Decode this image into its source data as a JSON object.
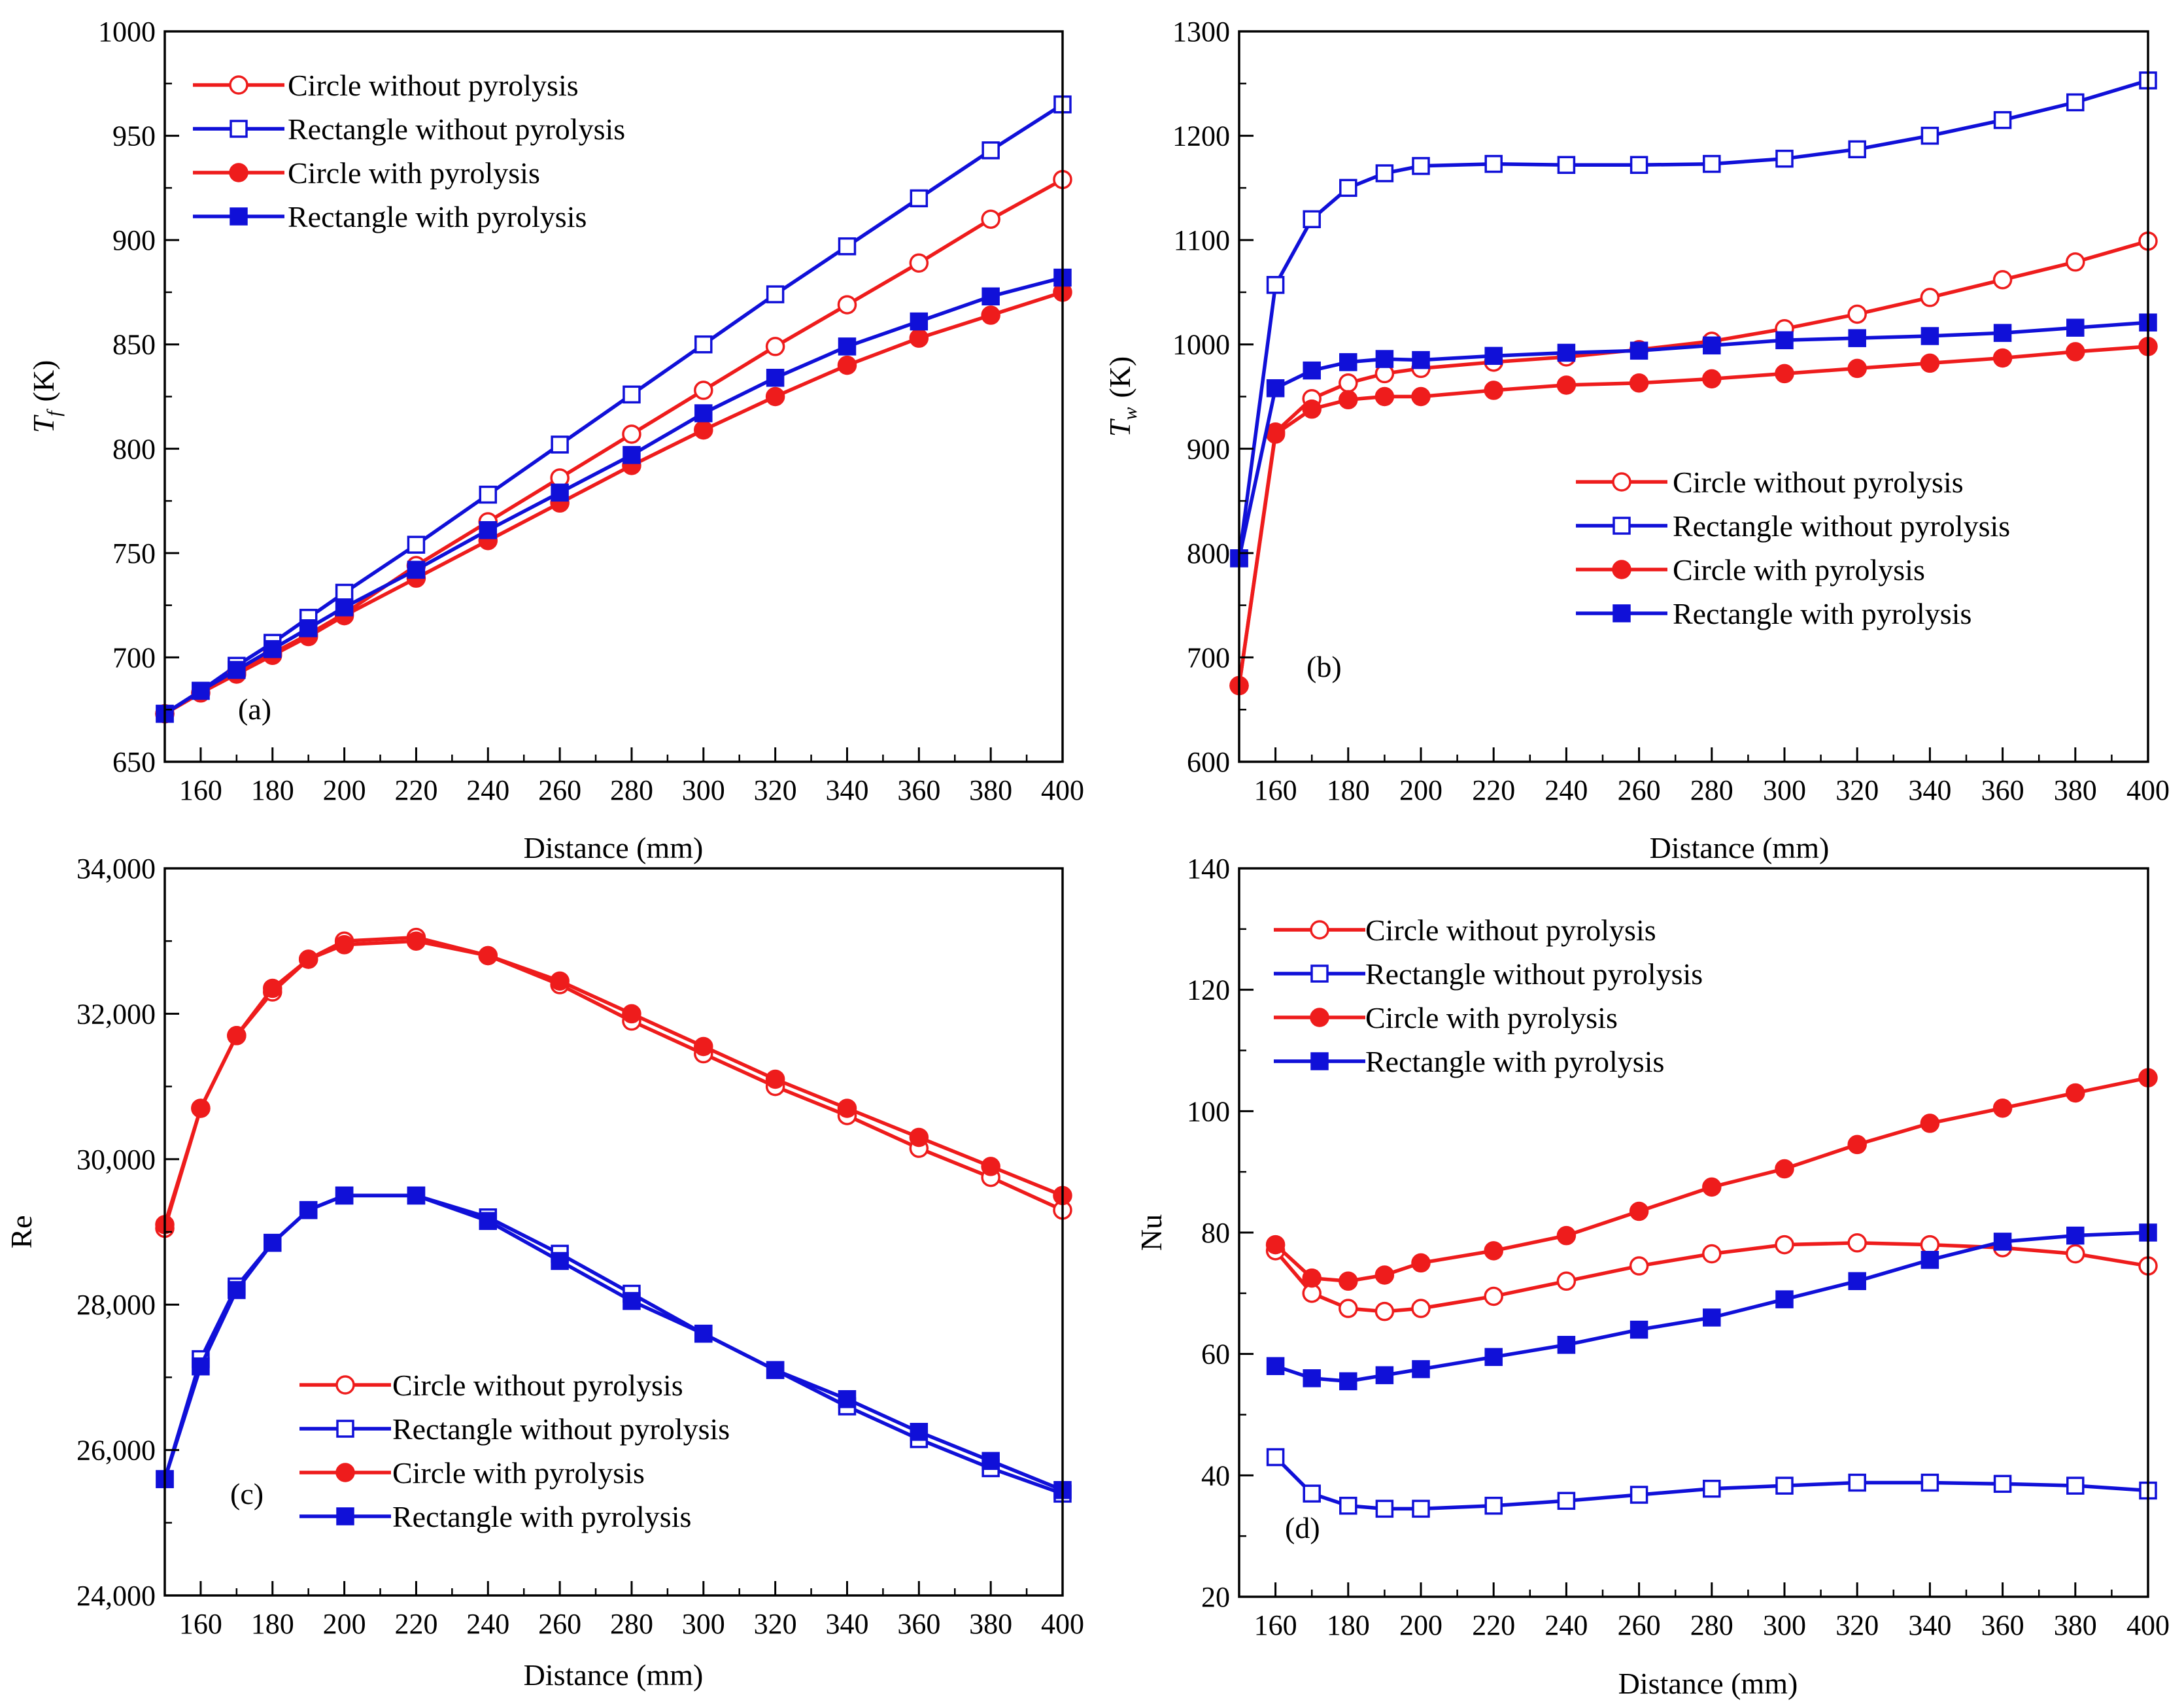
{
  "colors": {
    "red": "#ee1c1c",
    "blue": "#1010d8",
    "axis": "#000000"
  },
  "legend": [
    {
      "label": "Circle without pyrolysis",
      "color": "#ee1c1c",
      "marker": "circle-open"
    },
    {
      "label": "Rectangle without pyrolysis",
      "color": "#1010d8",
      "marker": "square-open"
    },
    {
      "label": "Circle with pyrolysis",
      "color": "#ee1c1c",
      "marker": "circle-filled"
    },
    {
      "label": "Rectangle with pyrolysis",
      "color": "#1010d8",
      "marker": "square-filled"
    }
  ],
  "chart_data": [
    {
      "type": "line",
      "panel": "(a)",
      "xlabel": "Distance (mm)",
      "ylabel": "T_f (K)",
      "ylabel_main": "T",
      "ylabel_sub": "f",
      "ylabel_unit": "(K)",
      "xlim": [
        150,
        400
      ],
      "ylim": [
        650,
        1000
      ],
      "xticks": [
        160,
        180,
        200,
        220,
        240,
        260,
        280,
        300,
        320,
        340,
        360,
        380,
        400
      ],
      "yticks": [
        650,
        700,
        750,
        800,
        850,
        900,
        950,
        1000
      ],
      "ytick_labels": [
        "650",
        "700",
        "750",
        "800",
        "850",
        "900",
        "950",
        "1000"
      ],
      "legend_position": "top-left",
      "series": [
        {
          "name": "Circle without pyrolysis",
          "x": [
            150,
            160,
            170,
            180,
            190,
            200,
            220,
            240,
            260,
            280,
            300,
            320,
            340,
            360,
            380,
            400
          ],
          "y": [
            673,
            683,
            693,
            702,
            711,
            721,
            744,
            765,
            786,
            807,
            828,
            849,
            869,
            889,
            910,
            929
          ]
        },
        {
          "name": "Rectangle without pyrolysis",
          "x": [
            150,
            160,
            170,
            180,
            190,
            200,
            220,
            240,
            260,
            280,
            300,
            320,
            340,
            360,
            380,
            400
          ],
          "y": [
            673,
            684,
            696,
            707,
            719,
            731,
            754,
            778,
            802,
            826,
            850,
            874,
            897,
            920,
            943,
            965
          ]
        },
        {
          "name": "Circle with pyrolysis",
          "x": [
            150,
            160,
            170,
            180,
            190,
            200,
            220,
            240,
            260,
            280,
            300,
            320,
            340,
            360,
            380,
            400
          ],
          "y": [
            673,
            683,
            692,
            701,
            710,
            720,
            738,
            756,
            774,
            792,
            809,
            825,
            840,
            853,
            864,
            875
          ]
        },
        {
          "name": "Rectangle with pyrolysis",
          "x": [
            150,
            160,
            170,
            180,
            190,
            200,
            220,
            240,
            260,
            280,
            300,
            320,
            340,
            360,
            380,
            400
          ],
          "y": [
            673,
            684,
            694,
            704,
            714,
            724,
            742,
            761,
            779,
            797,
            817,
            834,
            849,
            861,
            873,
            882
          ]
        }
      ]
    },
    {
      "type": "line",
      "panel": "(b)",
      "xlabel": "Distance (mm)",
      "ylabel": "T_w (K)",
      "ylabel_main": "T",
      "ylabel_sub": "w",
      "ylabel_unit": "(K)",
      "xlim": [
        150,
        400
      ],
      "ylim": [
        600,
        1300
      ],
      "xticks": [
        160,
        180,
        200,
        220,
        240,
        260,
        280,
        300,
        320,
        340,
        360,
        380,
        400
      ],
      "yticks": [
        600,
        700,
        800,
        900,
        1000,
        1100,
        1200,
        1300
      ],
      "ytick_labels": [
        "600",
        "700",
        "800",
        "900",
        "1000",
        "1100",
        "1200",
        "1300"
      ],
      "legend_position": "center-right",
      "series": [
        {
          "name": "Circle without pyrolysis",
          "x": [
            150,
            160,
            170,
            180,
            190,
            200,
            220,
            240,
            260,
            280,
            300,
            320,
            340,
            360,
            380,
            400
          ],
          "y": [
            673,
            916,
            948,
            963,
            972,
            977,
            983,
            988,
            995,
            1003,
            1015,
            1029,
            1045,
            1062,
            1079,
            1099
          ]
        },
        {
          "name": "Rectangle without pyrolysis",
          "x": [
            150,
            160,
            170,
            180,
            190,
            200,
            220,
            240,
            260,
            280,
            300,
            320,
            340,
            360,
            380,
            400
          ],
          "y": [
            795,
            1057,
            1120,
            1150,
            1164,
            1171,
            1173,
            1172,
            1172,
            1173,
            1178,
            1187,
            1200,
            1215,
            1232,
            1253
          ]
        },
        {
          "name": "Circle with pyrolysis",
          "x": [
            150,
            160,
            170,
            180,
            190,
            200,
            220,
            240,
            260,
            280,
            300,
            320,
            340,
            360,
            380,
            400
          ],
          "y": [
            673,
            914,
            938,
            947,
            950,
            950,
            956,
            961,
            963,
            967,
            972,
            977,
            982,
            987,
            993,
            998
          ]
        },
        {
          "name": "Rectangle with pyrolysis",
          "x": [
            150,
            160,
            170,
            180,
            190,
            200,
            220,
            240,
            260,
            280,
            300,
            320,
            340,
            360,
            380,
            400
          ],
          "y": [
            795,
            958,
            975,
            983,
            986,
            985,
            989,
            992,
            994,
            999,
            1004,
            1006,
            1008,
            1011,
            1016,
            1021
          ]
        }
      ]
    },
    {
      "type": "line",
      "panel": "(c)",
      "xlabel": "Distance (mm)",
      "ylabel": "Re",
      "xlim": [
        150,
        400
      ],
      "ylim": [
        24000,
        34000
      ],
      "xticks": [
        160,
        180,
        200,
        220,
        240,
        260,
        280,
        300,
        320,
        340,
        360,
        380,
        400
      ],
      "yticks": [
        24000,
        26000,
        28000,
        30000,
        32000,
        34000
      ],
      "ytick_labels": [
        "24,000",
        "26,000",
        "28,000",
        "30,000",
        "32,000",
        "34,000"
      ],
      "legend_position": "bottom-center",
      "series": [
        {
          "name": "Circle without pyrolysis",
          "x": [
            150,
            160,
            170,
            180,
            190,
            200,
            220,
            240,
            260,
            280,
            300,
            320,
            340,
            360,
            380,
            400
          ],
          "y": [
            29050,
            30700,
            31700,
            32300,
            32750,
            33000,
            33050,
            32800,
            32400,
            31900,
            31450,
            31000,
            30600,
            30150,
            29750,
            29300
          ]
        },
        {
          "name": "Rectangle without pyrolysis",
          "x": [
            150,
            160,
            170,
            180,
            190,
            200,
            220,
            240,
            260,
            280,
            300,
            320,
            340,
            360,
            380,
            400
          ],
          "y": [
            25600,
            27250,
            28250,
            28850,
            29300,
            29500,
            29500,
            29200,
            28700,
            28150,
            27600,
            27100,
            26600,
            26150,
            25750,
            25400
          ]
        },
        {
          "name": "Circle with pyrolysis",
          "x": [
            150,
            160,
            170,
            180,
            190,
            200,
            220,
            240,
            260,
            280,
            300,
            320,
            340,
            360,
            380,
            400
          ],
          "y": [
            29100,
            30700,
            31700,
            32350,
            32750,
            32950,
            33000,
            32800,
            32450,
            32000,
            31550,
            31100,
            30700,
            30300,
            29900,
            29500
          ]
        },
        {
          "name": "Rectangle with pyrolysis",
          "x": [
            150,
            160,
            170,
            180,
            190,
            200,
            220,
            240,
            260,
            280,
            300,
            320,
            340,
            360,
            380,
            400
          ],
          "y": [
            25600,
            27150,
            28200,
            28850,
            29300,
            29500,
            29500,
            29150,
            28600,
            28050,
            27600,
            27100,
            26700,
            26250,
            25850,
            25450
          ]
        }
      ]
    },
    {
      "type": "line",
      "panel": "(d)",
      "xlabel": "Distance (mm)",
      "ylabel": "Nu",
      "xlim": [
        150,
        400
      ],
      "ylim": [
        20,
        140
      ],
      "xticks": [
        160,
        180,
        200,
        220,
        240,
        260,
        280,
        300,
        320,
        340,
        360,
        380,
        400
      ],
      "yticks": [
        20,
        40,
        60,
        80,
        100,
        120,
        140
      ],
      "ytick_labels": [
        "20",
        "40",
        "60",
        "80",
        "100",
        "120",
        "140"
      ],
      "legend_position": "top-left",
      "series": [
        {
          "name": "Circle without pyrolysis",
          "x": [
            160,
            170,
            180,
            190,
            200,
            220,
            240,
            260,
            280,
            300,
            320,
            340,
            360,
            380,
            400
          ],
          "y": [
            77,
            70,
            67.5,
            67,
            67.5,
            69.5,
            72,
            74.5,
            76.5,
            78,
            78.3,
            78,
            77.5,
            76.5,
            74.5
          ]
        },
        {
          "name": "Rectangle without pyrolysis",
          "x": [
            160,
            170,
            180,
            190,
            200,
            220,
            240,
            260,
            280,
            300,
            320,
            340,
            360,
            380,
            400
          ],
          "y": [
            43,
            37,
            35,
            34.5,
            34.5,
            35,
            35.8,
            36.8,
            37.8,
            38.3,
            38.8,
            38.8,
            38.6,
            38.3,
            37.5
          ]
        },
        {
          "name": "Circle with pyrolysis",
          "x": [
            160,
            170,
            180,
            190,
            200,
            220,
            240,
            260,
            280,
            300,
            320,
            340,
            360,
            380,
            400
          ],
          "y": [
            78,
            72.5,
            72,
            73,
            75,
            77,
            79.5,
            83.5,
            87.5,
            90.5,
            94.5,
            98,
            100.5,
            103,
            105.5
          ]
        },
        {
          "name": "Rectangle with pyrolysis",
          "x": [
            160,
            170,
            180,
            190,
            200,
            220,
            240,
            260,
            280,
            300,
            320,
            340,
            360,
            380,
            400
          ],
          "y": [
            58,
            56,
            55.5,
            56.5,
            57.5,
            59.5,
            61.5,
            64,
            66,
            69,
            72,
            75.5,
            78.5,
            79.5,
            80
          ]
        }
      ]
    }
  ]
}
